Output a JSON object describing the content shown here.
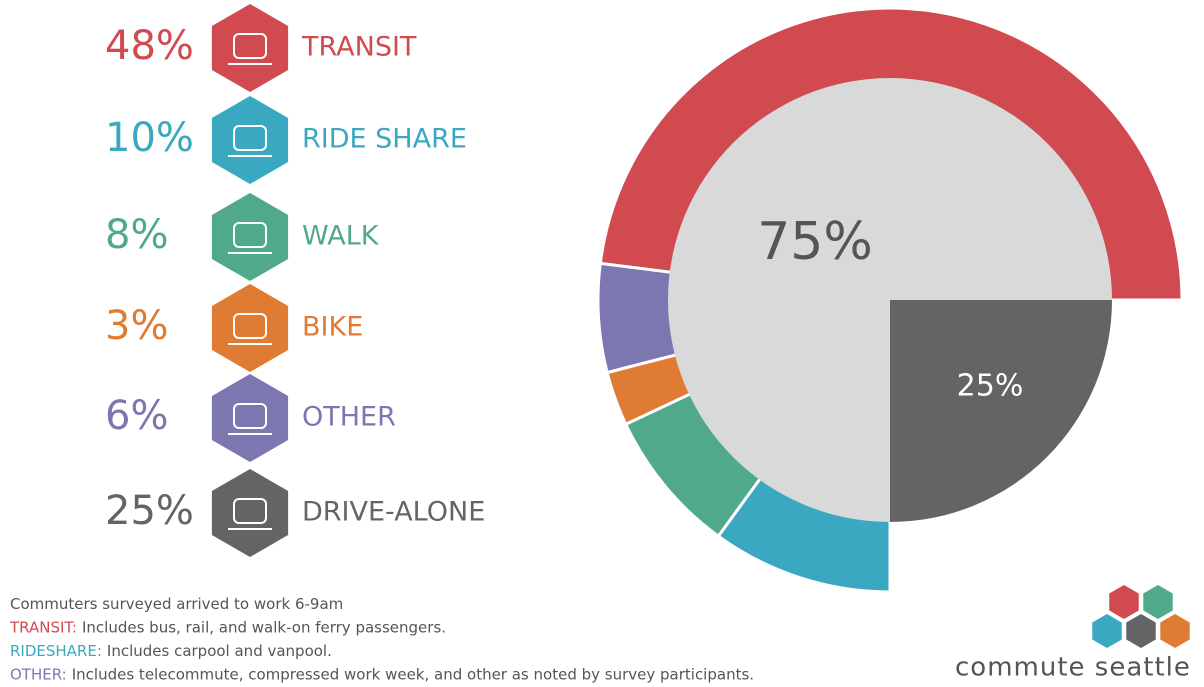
{
  "chart_data": {
    "type": "pie",
    "categories": [
      "TRANSIT",
      "RIDE SHARE",
      "WALK",
      "BIKE",
      "OTHER",
      "DRIVE-ALONE"
    ],
    "values": [
      48,
      10,
      8,
      3,
      6,
      25
    ],
    "value_labels": [
      "48%",
      "10%",
      "8%",
      "3%",
      "6%",
      "25%"
    ],
    "colors": [
      "#d04a50",
      "#3aa8c0",
      "#4fa98a",
      "#e07b34",
      "#7d77b1",
      "#646466"
    ],
    "inner": {
      "values": [
        75,
        25
      ],
      "value_labels": [
        "75%",
        "25%"
      ],
      "colors": [
        "#d9d9d9",
        "#646466"
      ]
    }
  },
  "notes": [
    {
      "text": "Commuters surveyed arrived to work 6-9am"
    },
    {
      "term": "TRANSIT:",
      "text": "Includes bus, rail, and walk-on ferry passengers."
    },
    {
      "term": "RIDESHARE:",
      "text": "Includes carpool and vanpool."
    },
    {
      "term": "OTHER:",
      "text": "Includes telecommute, compressed work week, and other as noted by survey participants."
    }
  ],
  "logo": "commute seattle"
}
